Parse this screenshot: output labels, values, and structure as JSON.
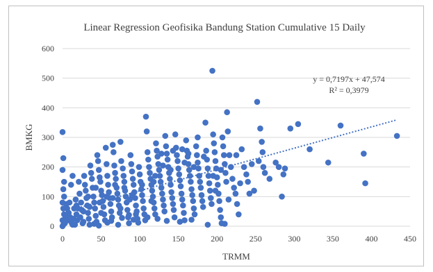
{
  "chart_data": {
    "type": "scatter",
    "title": "Linear Regression Geofisika Bandung Station Cumulative 15 Daily",
    "xlabel": "TRMM",
    "ylabel": "BMKG",
    "xlim": [
      0,
      450
    ],
    "ylim": [
      0,
      600
    ],
    "xticks": [
      "0",
      "50",
      "100",
      "150",
      "200",
      "250",
      "300",
      "350",
      "400",
      "450"
    ],
    "yticks": [
      "0",
      "100",
      "200",
      "300",
      "400",
      "500",
      "600"
    ],
    "grid": "horizontal",
    "legend": "none",
    "colors": {
      "points": "#4472c4",
      "trendline": "#4472c4",
      "grid": "#d9d9d9",
      "text": "#404040"
    },
    "trendline": {
      "slope": 0.7197,
      "intercept": 47.574,
      "x_range": [
        0,
        433
      ],
      "style": "dotted"
    },
    "annotations": {
      "equation": "y = 0,7197x + 47,574",
      "r_squared": "R² = 0,3979"
    },
    "series": [
      {
        "points": [
          [
            0,
            318
          ],
          [
            1,
            230
          ],
          [
            0,
            190
          ],
          [
            2,
            150
          ],
          [
            1,
            125
          ],
          [
            0,
            80
          ],
          [
            1,
            60
          ],
          [
            2,
            40
          ],
          [
            0,
            20
          ],
          [
            1,
            5
          ],
          [
            0,
            0
          ],
          [
            3,
            10
          ],
          [
            4,
            30
          ],
          [
            2,
            100
          ],
          [
            5,
            75
          ],
          [
            6,
            60
          ],
          [
            8,
            45
          ],
          [
            7,
            20
          ],
          [
            10,
            30
          ],
          [
            12,
            10
          ],
          [
            9,
            80
          ],
          [
            11,
            140
          ],
          [
            13,
            170
          ],
          [
            15,
            60
          ],
          [
            17,
            90
          ],
          [
            18,
            40
          ],
          [
            19,
            20
          ],
          [
            16,
            5
          ],
          [
            21,
            150
          ],
          [
            22,
            110
          ],
          [
            24,
            80
          ],
          [
            25,
            55
          ],
          [
            23,
            30
          ],
          [
            26,
            10
          ],
          [
            28,
            170
          ],
          [
            29,
            140
          ],
          [
            30,
            120
          ],
          [
            31,
            95
          ],
          [
            32,
            70
          ],
          [
            33,
            45
          ],
          [
            34,
            25
          ],
          [
            35,
            5
          ],
          [
            36,
            205
          ],
          [
            37,
            180
          ],
          [
            38,
            160
          ],
          [
            39,
            130
          ],
          [
            40,
            100
          ],
          [
            41,
            80
          ],
          [
            42,
            60
          ],
          [
            43,
            35
          ],
          [
            44,
            15
          ],
          [
            45,
            240
          ],
          [
            46,
            220
          ],
          [
            47,
            190
          ],
          [
            48,
            165
          ],
          [
            49,
            150
          ],
          [
            50,
            120
          ],
          [
            51,
            105
          ],
          [
            52,
            85
          ],
          [
            53,
            65
          ],
          [
            54,
            40
          ],
          [
            55,
            20
          ],
          [
            56,
            265
          ],
          [
            57,
            210
          ],
          [
            58,
            170
          ],
          [
            59,
            140
          ],
          [
            60,
            115
          ],
          [
            61,
            95
          ],
          [
            62,
            75
          ],
          [
            63,
            50
          ],
          [
            64,
            30
          ],
          [
            65,
            275
          ],
          [
            66,
            250
          ],
          [
            67,
            205
          ],
          [
            68,
            180
          ],
          [
            69,
            160
          ],
          [
            70,
            130
          ],
          [
            71,
            110
          ],
          [
            72,
            90
          ],
          [
            73,
            70
          ],
          [
            74,
            45
          ],
          [
            75,
            285
          ],
          [
            76,
            220
          ],
          [
            78,
            195
          ],
          [
            79,
            170
          ],
          [
            80,
            150
          ],
          [
            81,
            120
          ],
          [
            82,
            100
          ],
          [
            83,
            80
          ],
          [
            84,
            55
          ],
          [
            85,
            30
          ],
          [
            86,
            10
          ],
          [
            88,
            240
          ],
          [
            89,
            210
          ],
          [
            90,
            185
          ],
          [
            91,
            160
          ],
          [
            92,
            140
          ],
          [
            93,
            115
          ],
          [
            94,
            95
          ],
          [
            95,
            70
          ],
          [
            96,
            50
          ],
          [
            97,
            25
          ],
          [
            99,
            200
          ],
          [
            100,
            175
          ],
          [
            101,
            150
          ],
          [
            102,
            125
          ],
          [
            103,
            105
          ],
          [
            104,
            85
          ],
          [
            105,
            60
          ],
          [
            106,
            40
          ],
          [
            107,
            20
          ],
          [
            108,
            370
          ],
          [
            109,
            320
          ],
          [
            110,
            250
          ],
          [
            111,
            225
          ],
          [
            112,
            200
          ],
          [
            113,
            180
          ],
          [
            114,
            160
          ],
          [
            115,
            140
          ],
          [
            116,
            120
          ],
          [
            117,
            100
          ],
          [
            118,
            80
          ],
          [
            119,
            60
          ],
          [
            120,
            40
          ],
          [
            121,
            280
          ],
          [
            122,
            255
          ],
          [
            123,
            235
          ],
          [
            124,
            210
          ],
          [
            125,
            190
          ],
          [
            126,
            170
          ],
          [
            127,
            150
          ],
          [
            128,
            130
          ],
          [
            129,
            110
          ],
          [
            130,
            90
          ],
          [
            131,
            70
          ],
          [
            132,
            50
          ],
          [
            133,
            305
          ],
          [
            134,
            270
          ],
          [
            135,
            245
          ],
          [
            136,
            225
          ],
          [
            137,
            200
          ],
          [
            138,
            180
          ],
          [
            139,
            160
          ],
          [
            140,
            140
          ],
          [
            141,
            115
          ],
          [
            142,
            95
          ],
          [
            143,
            75
          ],
          [
            144,
            55
          ],
          [
            145,
            30
          ],
          [
            146,
            310
          ],
          [
            147,
            265
          ],
          [
            148,
            240
          ],
          [
            149,
            220
          ],
          [
            150,
            195
          ],
          [
            151,
            175
          ],
          [
            152,
            155
          ],
          [
            153,
            135
          ],
          [
            154,
            110
          ],
          [
            155,
            90
          ],
          [
            156,
            70
          ],
          [
            157,
            45
          ],
          [
            158,
            20
          ],
          [
            160,
            290
          ],
          [
            161,
            255
          ],
          [
            162,
            235
          ],
          [
            163,
            210
          ],
          [
            164,
            190
          ],
          [
            165,
            170
          ],
          [
            166,
            150
          ],
          [
            167,
            125
          ],
          [
            168,
            105
          ],
          [
            169,
            85
          ],
          [
            170,
            60
          ],
          [
            171,
            40
          ],
          [
            173,
            270
          ],
          [
            174,
            240
          ],
          [
            175,
            215
          ],
          [
            176,
            195
          ],
          [
            177,
            170
          ],
          [
            178,
            150
          ],
          [
            179,
            130
          ],
          [
            180,
            105
          ],
          [
            181,
            85
          ],
          [
            182,
            65
          ],
          [
            185,
            350
          ],
          [
            186,
            255
          ],
          [
            187,
            225
          ],
          [
            188,
            195
          ],
          [
            189,
            170
          ],
          [
            190,
            145
          ],
          [
            191,
            120
          ],
          [
            192,
            95
          ],
          [
            193,
            75
          ],
          [
            194,
            525
          ],
          [
            195,
            310
          ],
          [
            196,
            280
          ],
          [
            197,
            250
          ],
          [
            198,
            220
          ],
          [
            199,
            195
          ],
          [
            200,
            165
          ],
          [
            201,
            140
          ],
          [
            202,
            110
          ],
          [
            203,
            85
          ],
          [
            204,
            55
          ],
          [
            205,
            30
          ],
          [
            206,
            10
          ],
          [
            207,
            300
          ],
          [
            208,
            270
          ],
          [
            209,
            240
          ],
          [
            210,
            210
          ],
          [
            211,
            180
          ],
          [
            212,
            150
          ],
          [
            213,
            385
          ],
          [
            214,
            320
          ],
          [
            216,
            240
          ],
          [
            218,
            200
          ],
          [
            220,
            160
          ],
          [
            222,
            130
          ],
          [
            224,
            110
          ],
          [
            226,
            75
          ],
          [
            228,
            40
          ],
          [
            232,
            260
          ],
          [
            235,
            200
          ],
          [
            238,
            175
          ],
          [
            240,
            150
          ],
          [
            242,
            110
          ],
          [
            245,
            210
          ],
          [
            248,
            120
          ],
          [
            252,
            420
          ],
          [
            254,
            220
          ],
          [
            256,
            330
          ],
          [
            258,
            285
          ],
          [
            259,
            250
          ],
          [
            260,
            200
          ],
          [
            262,
            180
          ],
          [
            268,
            160
          ],
          [
            276,
            215
          ],
          [
            280,
            200
          ],
          [
            284,
            100
          ],
          [
            286,
            175
          ],
          [
            288,
            195
          ],
          [
            295,
            330
          ],
          [
            305,
            345
          ],
          [
            320,
            260
          ],
          [
            344,
            215
          ],
          [
            360,
            340
          ],
          [
            390,
            245
          ],
          [
            392,
            145
          ],
          [
            433,
            305
          ],
          [
            13,
            5
          ],
          [
            27,
            15
          ],
          [
            41,
            8
          ],
          [
            47,
            2
          ],
          [
            58,
            12
          ],
          [
            63,
            18
          ],
          [
            72,
            5
          ],
          [
            77,
            28
          ],
          [
            86,
            38
          ],
          [
            92,
            22
          ],
          [
            98,
            12
          ],
          [
            110,
            30
          ],
          [
            123,
            25
          ],
          [
            135,
            18
          ],
          [
            152,
            15
          ],
          [
            167,
            22
          ],
          [
            188,
            5
          ],
          [
            210,
            8
          ],
          [
            20,
            60
          ],
          [
            35,
            65
          ],
          [
            50,
            45
          ],
          [
            65,
            95
          ],
          [
            75,
            60
          ],
          [
            90,
            105
          ],
          [
            95,
            40
          ],
          [
            115,
            85
          ],
          [
            120,
            170
          ],
          [
            130,
            205
          ],
          [
            140,
            190
          ],
          [
            155,
            260
          ],
          [
            170,
            200
          ],
          [
            175,
            300
          ],
          [
            195,
            170
          ],
          [
            205,
            190
          ],
          [
            225,
            240
          ],
          [
            230,
            145
          ],
          [
            14,
            25
          ],
          [
            18,
            70
          ],
          [
            27,
            50
          ],
          [
            33,
            100
          ],
          [
            43,
            130
          ],
          [
            48,
            80
          ],
          [
            57,
            100
          ],
          [
            68,
            140
          ],
          [
            80,
            130
          ],
          [
            87,
            90
          ],
          [
            103,
            140
          ],
          [
            118,
            150
          ],
          [
            128,
            245
          ],
          [
            143,
            255
          ],
          [
            158,
            215
          ],
          [
            163,
            245
          ],
          [
            183,
            235
          ],
          [
            198,
            120
          ],
          [
            215,
            90
          ]
        ]
      }
    ]
  }
}
